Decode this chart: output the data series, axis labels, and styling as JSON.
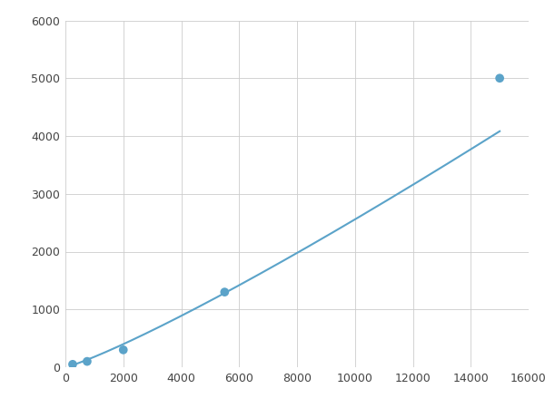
{
  "x_data": [
    250,
    750,
    2000,
    5500,
    15000
  ],
  "y_data": [
    50,
    100,
    300,
    1300,
    5000
  ],
  "line_color": "#5ba3c9",
  "marker_color": "#5ba3c9",
  "marker_size": 7,
  "line_width": 1.5,
  "xlim": [
    0,
    16000
  ],
  "ylim": [
    0,
    6000
  ],
  "xticks": [
    0,
    2000,
    4000,
    6000,
    8000,
    10000,
    12000,
    14000,
    16000
  ],
  "yticks": [
    0,
    1000,
    2000,
    3000,
    4000,
    5000,
    6000
  ],
  "grid": true,
  "background_color": "#ffffff",
  "figsize": [
    6.0,
    4.5
  ],
  "dpi": 100
}
